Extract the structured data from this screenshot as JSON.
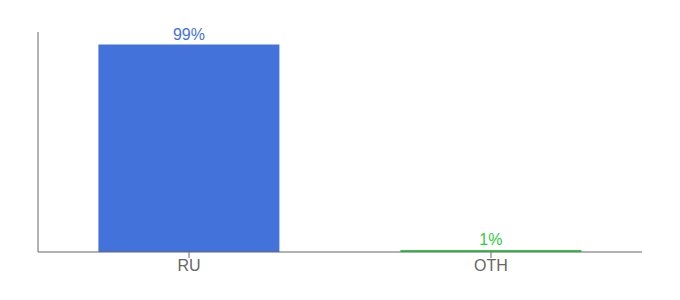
{
  "chart_data": {
    "type": "bar",
    "categories": [
      "RU",
      "OTH"
    ],
    "values": [
      99,
      1
    ],
    "value_labels": [
      "99%",
      "1%"
    ],
    "colors": [
      "#4472db",
      "#2ecc40"
    ],
    "ylim": [
      0,
      105
    ],
    "yticks": [],
    "tick_labels": "x",
    "data_labels": true,
    "grid": false
  }
}
